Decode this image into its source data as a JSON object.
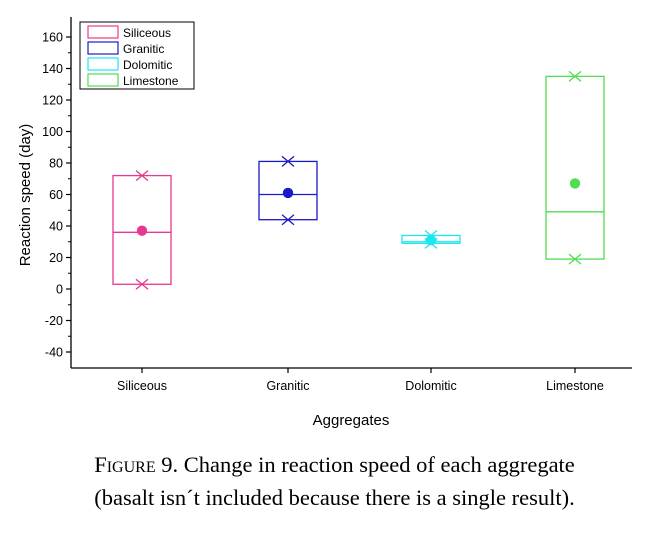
{
  "chart_data": {
    "type": "box",
    "xlabel": "Aggregates",
    "ylabel": "Reaction speed (day)",
    "ylim": [
      -50,
      170
    ],
    "yticks": [
      -40,
      -20,
      0,
      20,
      40,
      60,
      80,
      100,
      120,
      140,
      160
    ],
    "ytick_labels": [
      "-40",
      "-20",
      "0",
      "20",
      "40",
      "60",
      "80",
      "100",
      "120",
      "140",
      "160"
    ],
    "categories": [
      "Siliceous",
      "Granitic",
      "Dolomitic",
      "Limestone"
    ],
    "legend_position": "top-left",
    "grid": false,
    "series": [
      {
        "name": "Siliceous",
        "color": "#e8388f",
        "q1": 3,
        "median": 36,
        "q3": 72,
        "mean": 37,
        "min": 3,
        "max": 72
      },
      {
        "name": "Granitic",
        "color": "#1a1ac8",
        "q1": 44,
        "median": 60,
        "q3": 81,
        "mean": 61,
        "min": 44,
        "max": 81
      },
      {
        "name": "Dolomitic",
        "color": "#1ee6f0",
        "q1": 29,
        "median": 30,
        "q3": 34,
        "mean": 31,
        "min": 29,
        "max": 34
      },
      {
        "name": "Limestone",
        "color": "#52dc52",
        "q1": 19,
        "median": 49,
        "q3": 135,
        "mean": 67,
        "min": 19,
        "max": 135
      }
    ]
  },
  "caption": {
    "label": "Figure 9.",
    "line1": "Change in reaction speed of each aggregate",
    "line2": "(basalt isn´t included because there is a single result)."
  }
}
